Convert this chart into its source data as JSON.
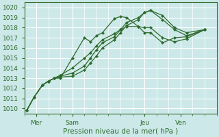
{
  "xlabel": "Pression niveau de la mer( hPa )",
  "bg_color": "#cce8e8",
  "grid_color": "#ffffff",
  "line_color": "#2d6a2d",
  "marker_color": "#2d6a2d",
  "ylim": [
    1009.5,
    1020.5
  ],
  "yticks": [
    1010,
    1011,
    1012,
    1013,
    1014,
    1015,
    1016,
    1017,
    1018,
    1019,
    1020
  ],
  "xlim": [
    0,
    16
  ],
  "xtick_pos": [
    1,
    4,
    10,
    13
  ],
  "xtick_labels": [
    "Mer",
    "Sam",
    "Jeu",
    "Ven"
  ],
  "series": [
    {
      "x": [
        0.2,
        0.8,
        1.5,
        2.0,
        2.5,
        3.0,
        4.0,
        5.0,
        5.5,
        6.0,
        6.5,
        7.5,
        8.0,
        8.5,
        9.5,
        10.0,
        10.5,
        11.5,
        12.5,
        13.5,
        15.0
      ],
      "y": [
        1009.8,
        1011.1,
        1012.3,
        1012.7,
        1013.0,
        1013.0,
        1015.0,
        1017.0,
        1016.6,
        1017.2,
        1017.5,
        1018.9,
        1019.1,
        1019.0,
        1018.1,
        1017.5,
        1017.5,
        1016.5,
        1017.0,
        1017.1,
        1017.8
      ]
    },
    {
      "x": [
        0.2,
        0.8,
        1.5,
        2.0,
        2.5,
        3.0,
        4.0,
        5.0,
        5.5,
        6.0,
        6.5,
        7.5,
        8.0,
        8.5,
        9.5,
        10.0,
        10.5,
        11.5,
        12.5,
        13.5,
        15.0
      ],
      "y": [
        1009.8,
        1011.1,
        1012.3,
        1012.7,
        1013.0,
        1013.1,
        1013.2,
        1013.8,
        1014.5,
        1015.2,
        1016.0,
        1016.8,
        1017.5,
        1018.2,
        1018.8,
        1019.5,
        1019.7,
        1019.2,
        1018.0,
        1017.5,
        1017.8
      ]
    },
    {
      "x": [
        0.2,
        0.8,
        1.5,
        2.0,
        2.5,
        3.0,
        4.0,
        5.0,
        5.5,
        6.0,
        6.5,
        7.5,
        8.0,
        8.5,
        9.5,
        10.0,
        10.5,
        11.5,
        12.5,
        13.5,
        15.0
      ],
      "y": [
        1009.8,
        1011.1,
        1012.3,
        1012.7,
        1013.0,
        1013.2,
        1013.5,
        1014.2,
        1015.0,
        1015.8,
        1016.5,
        1017.1,
        1017.8,
        1018.5,
        1019.0,
        1019.5,
        1019.7,
        1018.8,
        1017.8,
        1017.2,
        1017.8
      ]
    },
    {
      "x": [
        0.2,
        0.8,
        1.5,
        2.0,
        2.5,
        3.0,
        4.0,
        5.0,
        5.5,
        6.0,
        6.5,
        7.5,
        8.0,
        8.5,
        9.5,
        10.0,
        10.5,
        11.5,
        12.5,
        13.5,
        15.0
      ],
      "y": [
        1009.8,
        1011.1,
        1012.3,
        1012.7,
        1013.0,
        1013.3,
        1014.0,
        1015.0,
        1015.5,
        1016.2,
        1016.8,
        1017.4,
        1017.8,
        1018.1,
        1018.1,
        1018.0,
        1018.0,
        1017.0,
        1016.6,
        1016.9,
        1017.8
      ]
    }
  ]
}
